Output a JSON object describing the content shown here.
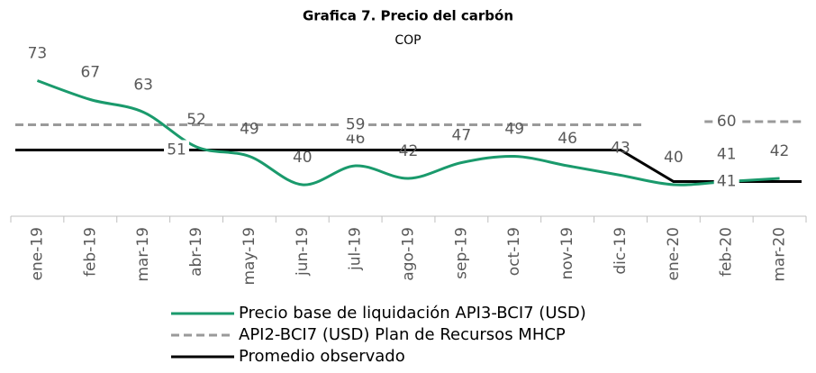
{
  "chart_data": {
    "type": "line",
    "title": "Grafica 7. Precio del carbón",
    "subtitle": "COP",
    "categories": [
      "ene-19",
      "feb-19",
      "mar-19",
      "abr-19",
      "may-19",
      "jun-19",
      "jul-19",
      "ago-19",
      "sep-19",
      "oct-19",
      "nov-19",
      "dic-19",
      "ene-20",
      "feb-20",
      "mar-20"
    ],
    "ylim": [
      30,
      85
    ],
    "series": [
      {
        "name": "Precio base de liquidación API3-BCI7 (USD)",
        "color": "#1a9a6c",
        "smooth": true,
        "values": [
          73,
          67,
          63,
          52,
          49,
          40,
          46,
          42,
          47,
          49,
          46,
          43,
          40,
          41,
          42
        ]
      },
      {
        "name": "API2-BCI7 (USD) Plan de Recursos MHCP",
        "color": "#9a9a9a",
        "dash": true,
        "values": [
          59,
          59,
          59,
          59,
          59,
          59,
          59,
          59,
          59,
          59,
          59,
          59,
          null,
          60,
          60
        ],
        "value_labels": [
          null,
          null,
          null,
          null,
          null,
          null,
          "59",
          null,
          null,
          null,
          null,
          null,
          null,
          "60",
          null
        ]
      },
      {
        "name": "Promedio observado",
        "color": "#000000",
        "values": [
          51,
          51,
          51,
          51,
          51,
          51,
          51,
          51,
          51,
          51,
          51,
          51,
          41,
          41,
          41
        ],
        "value_labels": [
          null,
          null,
          null,
          "51",
          null,
          null,
          null,
          null,
          null,
          null,
          null,
          null,
          null,
          "41",
          null
        ]
      }
    ]
  }
}
